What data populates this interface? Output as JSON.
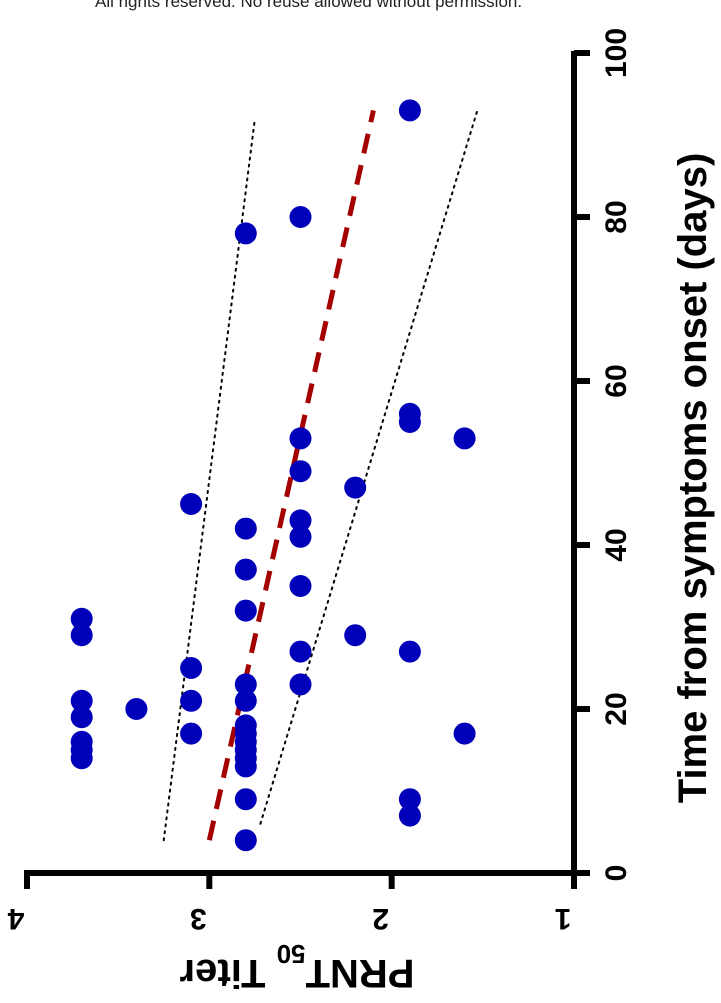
{
  "page": {
    "header_text": "All rights reserved. No reuse allowed without permission."
  },
  "chart_data": {
    "type": "scatter",
    "orientation": "rotated 90° clockwise (x axis vertical on right, y axis horizontal on bottom)",
    "xlabel": "Time from symptoms onset (days)",
    "ylabel_main": "PRNT",
    "ylabel_sub": "50",
    "ylabel_tail": " Titer",
    "xlim": [
      0,
      100
    ],
    "ylim": [
      1,
      4
    ],
    "x_ticks": [
      "0",
      "20",
      "40",
      "60",
      "80",
      "100"
    ],
    "y_ticks": [
      "1",
      "2",
      "3",
      "4"
    ],
    "x_tick_values": [
      0,
      20,
      40,
      60,
      80,
      100
    ],
    "y_tick_values": [
      1,
      2,
      3,
      4
    ],
    "grid": false,
    "point_color": "#0000bb",
    "fit_color": "#a50000",
    "ci_color": "#000000",
    "points": [
      {
        "x": 14,
        "y": 3.7
      },
      {
        "x": 15,
        "y": 3.7
      },
      {
        "x": 16,
        "y": 3.7
      },
      {
        "x": 19,
        "y": 3.7
      },
      {
        "x": 21,
        "y": 3.7
      },
      {
        "x": 29,
        "y": 3.7
      },
      {
        "x": 31,
        "y": 3.7
      },
      {
        "x": 20,
        "y": 3.4
      },
      {
        "x": 17,
        "y": 3.1
      },
      {
        "x": 21,
        "y": 3.1
      },
      {
        "x": 25,
        "y": 3.1
      },
      {
        "x": 45,
        "y": 3.1
      },
      {
        "x": 4,
        "y": 2.8
      },
      {
        "x": 9,
        "y": 2.8
      },
      {
        "x": 13,
        "y": 2.8
      },
      {
        "x": 14,
        "y": 2.8
      },
      {
        "x": 15,
        "y": 2.8
      },
      {
        "x": 16,
        "y": 2.8
      },
      {
        "x": 17,
        "y": 2.8
      },
      {
        "x": 18,
        "y": 2.8
      },
      {
        "x": 21,
        "y": 2.8
      },
      {
        "x": 23,
        "y": 2.8
      },
      {
        "x": 32,
        "y": 2.8
      },
      {
        "x": 37,
        "y": 2.8
      },
      {
        "x": 42,
        "y": 2.8
      },
      {
        "x": 78,
        "y": 2.8
      },
      {
        "x": 23,
        "y": 2.5
      },
      {
        "x": 27,
        "y": 2.5
      },
      {
        "x": 35,
        "y": 2.5
      },
      {
        "x": 41,
        "y": 2.5
      },
      {
        "x": 43,
        "y": 2.5
      },
      {
        "x": 49,
        "y": 2.5
      },
      {
        "x": 53,
        "y": 2.5
      },
      {
        "x": 80,
        "y": 2.5
      },
      {
        "x": 29,
        "y": 2.2
      },
      {
        "x": 47,
        "y": 2.2
      },
      {
        "x": 7,
        "y": 1.9
      },
      {
        "x": 9,
        "y": 1.9
      },
      {
        "x": 27,
        "y": 1.9
      },
      {
        "x": 55,
        "y": 1.9
      },
      {
        "x": 56,
        "y": 1.9
      },
      {
        "x": 93,
        "y": 1.9
      },
      {
        "x": 17,
        "y": 1.6
      },
      {
        "x": 53,
        "y": 1.6
      }
    ],
    "fit_line": [
      {
        "x": 4,
        "y": 3.0
      },
      {
        "x": 93,
        "y": 2.1
      }
    ],
    "ci_upper": [
      {
        "x": 4,
        "y": 3.25
      },
      {
        "x": 92,
        "y": 2.75
      }
    ],
    "ci_lower": [
      {
        "x": 6,
        "y": 2.72
      },
      {
        "x": 93,
        "y": 1.53
      }
    ]
  }
}
